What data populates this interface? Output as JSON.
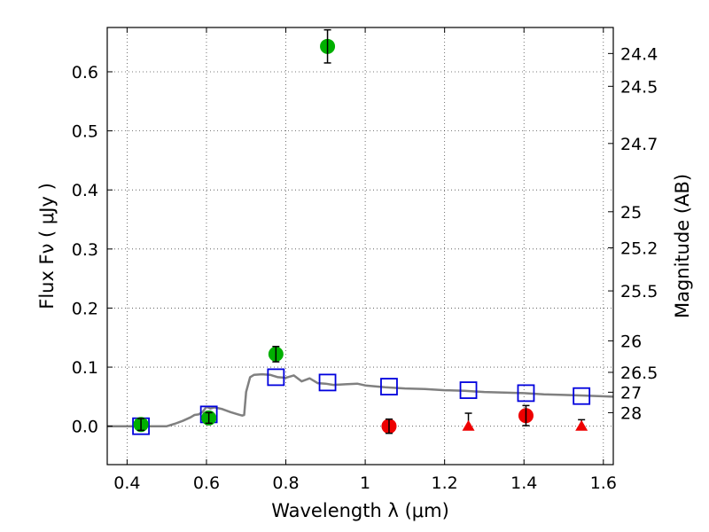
{
  "chart_data": {
    "type": "scatter",
    "xlabel": "Wavelength  λ (μm)",
    "ylabel": "Flux  Fν  ( μJy )",
    "y2label": "Magnitude (AB)",
    "xlim": [
      0.35,
      1.625
    ],
    "ylim": [
      -0.065,
      0.675
    ],
    "grid": true,
    "x_ticks": [
      {
        "value": 0.4,
        "label": "0.4"
      },
      {
        "value": 0.6,
        "label": "0.6"
      },
      {
        "value": 0.8,
        "label": "0.8"
      },
      {
        "value": 1.0,
        "label": "1"
      },
      {
        "value": 1.2,
        "label": "1.2"
      },
      {
        "value": 1.4,
        "label": "1.4"
      },
      {
        "value": 1.6,
        "label": "1.6"
      }
    ],
    "y_ticks": [
      {
        "value": 0.0,
        "label": "0.0"
      },
      {
        "value": 0.1,
        "label": "0.1"
      },
      {
        "value": 0.2,
        "label": "0.2"
      },
      {
        "value": 0.3,
        "label": "0.3"
      },
      {
        "value": 0.4,
        "label": "0.4"
      },
      {
        "value": 0.5,
        "label": "0.5"
      },
      {
        "value": 0.6,
        "label": "0.6"
      }
    ],
    "mag_ticks": [
      {
        "mag": 24.4,
        "label": "24.4"
      },
      {
        "mag": 24.5,
        "label": "24.5"
      },
      {
        "mag": 24.7,
        "label": "24.7"
      },
      {
        "mag": 25.0,
        "label": "25"
      },
      {
        "mag": 25.2,
        "label": "25.2"
      },
      {
        "mag": 25.5,
        "label": "25.5"
      },
      {
        "mag": 26.0,
        "label": "26"
      },
      {
        "mag": 26.5,
        "label": "26.5"
      },
      {
        "mag": 27.0,
        "label": "27"
      },
      {
        "mag": 28.0,
        "label": "28"
      }
    ],
    "series": [
      {
        "kind": "model-sed",
        "color": "#808080",
        "x": [
          0.35,
          0.4,
          0.45,
          0.5,
          0.52,
          0.54,
          0.56,
          0.57,
          0.58,
          0.59,
          0.6,
          0.61,
          0.62,
          0.64,
          0.66,
          0.68,
          0.69,
          0.695,
          0.7,
          0.71,
          0.72,
          0.74,
          0.76,
          0.78,
          0.8,
          0.82,
          0.84,
          0.86,
          0.88,
          0.9,
          0.92,
          0.95,
          0.98,
          1.0,
          1.05,
          1.1,
          1.15,
          1.2,
          1.25,
          1.3,
          1.35,
          1.4,
          1.45,
          1.5,
          1.55,
          1.625
        ],
        "y": [
          0.0,
          0.0,
          0.0,
          0.0,
          0.004,
          0.009,
          0.015,
          0.019,
          0.02,
          0.024,
          0.033,
          0.03,
          0.032,
          0.029,
          0.024,
          0.02,
          0.018,
          0.019,
          0.058,
          0.083,
          0.087,
          0.088,
          0.087,
          0.083,
          0.082,
          0.086,
          0.076,
          0.081,
          0.073,
          0.072,
          0.07,
          0.071,
          0.072,
          0.069,
          0.066,
          0.064,
          0.063,
          0.061,
          0.06,
          0.058,
          0.057,
          0.056,
          0.054,
          0.053,
          0.052,
          0.05
        ]
      },
      {
        "kind": "model-bands",
        "marker": "open-square",
        "color": "#0000dd",
        "x": [
          0.435,
          0.606,
          0.775,
          0.905,
          1.06,
          1.26,
          1.405,
          1.545
        ],
        "y": [
          0.0,
          0.02,
          0.083,
          0.074,
          0.067,
          0.061,
          0.056,
          0.051
        ]
      },
      {
        "kind": "detections",
        "marker": "circle",
        "color": "#00b000",
        "x": [
          0.435,
          0.606,
          0.775,
          0.905
        ],
        "y": [
          0.003,
          0.014,
          0.122,
          0.643
        ],
        "yerr": [
          0.01,
          0.009,
          0.013,
          0.028
        ]
      },
      {
        "kind": "nir-measurements",
        "marker": "circle",
        "color": "#ee0000",
        "x": [
          1.06,
          1.405
        ],
        "y": [
          0.0,
          0.018
        ],
        "yerr": [
          0.012,
          0.017
        ]
      },
      {
        "kind": "upper-limits",
        "marker": "triangle",
        "color": "#ee0000",
        "x": [
          1.26,
          1.545
        ],
        "y": [
          0.0,
          0.0
        ],
        "upper": [
          0.022,
          0.011
        ]
      }
    ]
  }
}
